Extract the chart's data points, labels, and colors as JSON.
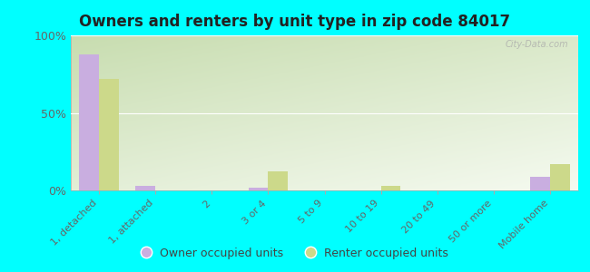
{
  "title": "Owners and renters by unit type in zip code 84017",
  "categories": [
    "1, detached",
    "1, attached",
    "2",
    "3 or 4",
    "5 to 9",
    "10 to 19",
    "20 to 49",
    "50 or more",
    "Mobile home"
  ],
  "owner_values": [
    88,
    3,
    0,
    2,
    0,
    0,
    0,
    0,
    9
  ],
  "renter_values": [
    72,
    0,
    0,
    12,
    0,
    3,
    0,
    0,
    17
  ],
  "owner_color": "#c9aee0",
  "renter_color": "#ccd98a",
  "background_color": "#00ffff",
  "plot_bg_top_left": "#c8ddb0",
  "plot_bg_bottom_right": "#f0f8e8",
  "title_fontsize": 12,
  "ylabel_fontsize": 9,
  "xlabel_fontsize": 8,
  "legend_fontsize": 9,
  "watermark": "City-Data.com",
  "ylim": [
    0,
    100
  ],
  "yticks": [
    0,
    50,
    100
  ]
}
